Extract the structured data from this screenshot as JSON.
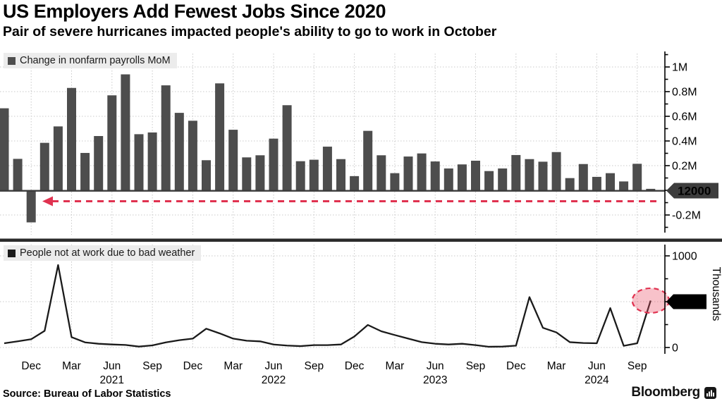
{
  "header": {
    "title": "US Employers Add Fewest Jobs Since 2020",
    "subtitle": "Pair of severe hurricanes impacted people's ability to go to work in October"
  },
  "footer": {
    "source": "Source: Bureau of Labor Statistics",
    "brand": "Bloomberg"
  },
  "colors": {
    "bar": "#4d4d4d",
    "line": "#1a1a1a",
    "accent_red": "#e03250",
    "highlight_fill": "rgba(236,81,104,0.35)",
    "badge_dark": "#3d3d3d",
    "badge_black": "#000000",
    "legend_bg": "#ececec",
    "grid": "#c9c9c9",
    "separator": "#2b2b2b"
  },
  "x_axis": {
    "tick_labels": [
      "Dec",
      "Mar",
      "Jun",
      "Sep",
      "Dec",
      "Mar",
      "Jun",
      "Sep",
      "Dec",
      "Mar",
      "Jun",
      "Sep",
      "Dec",
      "Mar",
      "Jun",
      "Sep"
    ],
    "year_labels": [
      "2021",
      "2022",
      "2023",
      "2024"
    ]
  },
  "annotations": {
    "payrolls_arrow": {
      "description": "Red dashed arrow from the latest payrolls reading (12000) pointing left back to Dec 2020, the last weaker month",
      "color": "#e03250"
    },
    "weather_highlight": {
      "description": "Red dashed ellipse highlighting the Oct 2024 bad-weather spike",
      "month": "Oct 2024",
      "value": 512
    }
  },
  "chart_data": [
    {
      "type": "bar",
      "legend": "Change in nonfarm payrolls MoM",
      "units": "thousands of jobs (axis shown in millions)",
      "ylim": [
        -300,
        1100
      ],
      "grid": true,
      "legend_position": "top-left",
      "y_ticks": [
        {
          "label": "1M",
          "value": 1000
        },
        {
          "label": "0.8M",
          "value": 800
        },
        {
          "label": "0.6M",
          "value": 600
        },
        {
          "label": "0.4M",
          "value": 400
        },
        {
          "label": "0.2M",
          "value": 200
        },
        {
          "label": "-0.2M",
          "value": -200
        }
      ],
      "current_value_badge": {
        "label": "12000",
        "value": 12
      },
      "x": [
        "Oct 2020",
        "Nov 2020",
        "Dec 2020",
        "Jan 2021",
        "Feb 2021",
        "Mar 2021",
        "Apr 2021",
        "May 2021",
        "Jun 2021",
        "Jul 2021",
        "Aug 2021",
        "Sep 2021",
        "Oct 2021",
        "Nov 2021",
        "Dec 2021",
        "Jan 2022",
        "Feb 2022",
        "Mar 2022",
        "Apr 2022",
        "May 2022",
        "Jun 2022",
        "Jul 2022",
        "Aug 2022",
        "Sep 2022",
        "Oct 2022",
        "Nov 2022",
        "Dec 2022",
        "Jan 2023",
        "Feb 2023",
        "Mar 2023",
        "Apr 2023",
        "May 2023",
        "Jun 2023",
        "Jul 2023",
        "Aug 2023",
        "Sep 2023",
        "Oct 2023",
        "Nov 2023",
        "Dec 2023",
        "Jan 2024",
        "Feb 2024",
        "Mar 2024",
        "Apr 2024",
        "May 2024",
        "Jun 2024",
        "Jul 2024",
        "Aug 2024",
        "Sep 2024",
        "Oct 2024"
      ],
      "values": [
        665,
        255,
        -260,
        385,
        518,
        830,
        303,
        440,
        770,
        940,
        455,
        469,
        851,
        628,
        564,
        244,
        867,
        491,
        267,
        284,
        419,
        690,
        236,
        248,
        354,
        253,
        115,
        482,
        284,
        139,
        274,
        299,
        234,
        177,
        210,
        240,
        156,
        177,
        286,
        253,
        232,
        310,
        99,
        213,
        109,
        139,
        72,
        215,
        12
      ]
    },
    {
      "type": "line",
      "legend": "People not at work due to bad weather",
      "unit_label": "Thousands",
      "ylim": [
        0,
        1100
      ],
      "grid": true,
      "legend_position": "top-left",
      "y_ticks": [
        {
          "label": "1000",
          "value": 1000
        },
        {
          "label": "0",
          "value": 0
        }
      ],
      "current_value_badge": {
        "label": "512",
        "value": 512
      },
      "x": [
        "Oct 2020",
        "Nov 2020",
        "Dec 2020",
        "Jan 2021",
        "Feb 2021",
        "Mar 2021",
        "Apr 2021",
        "May 2021",
        "Jun 2021",
        "Jul 2021",
        "Aug 2021",
        "Sep 2021",
        "Oct 2021",
        "Nov 2021",
        "Dec 2021",
        "Jan 2022",
        "Feb 2022",
        "Mar 2022",
        "Apr 2022",
        "May 2022",
        "Jun 2022",
        "Jul 2022",
        "Aug 2022",
        "Sep 2022",
        "Oct 2022",
        "Nov 2022",
        "Dec 2022",
        "Jan 2023",
        "Feb 2023",
        "Mar 2023",
        "Apr 2023",
        "May 2023",
        "Jun 2023",
        "Jul 2023",
        "Aug 2023",
        "Sep 2023",
        "Oct 2023",
        "Nov 2023",
        "Dec 2023",
        "Jan 2024",
        "Feb 2024",
        "Mar 2024",
        "Apr 2024",
        "May 2024",
        "Jun 2024",
        "Jul 2024",
        "Aug 2024",
        "Sep 2024",
        "Oct 2024"
      ],
      "values": [
        46,
        67,
        90,
        182,
        900,
        113,
        56,
        41,
        33,
        28,
        10,
        23,
        56,
        80,
        97,
        205,
        154,
        97,
        74,
        67,
        33,
        21,
        15,
        26,
        26,
        33,
        120,
        246,
        177,
        136,
        97,
        59,
        41,
        33,
        41,
        26,
        8,
        10,
        20,
        550,
        215,
        165,
        58,
        49,
        46,
        430,
        18,
        46,
        512
      ]
    }
  ]
}
